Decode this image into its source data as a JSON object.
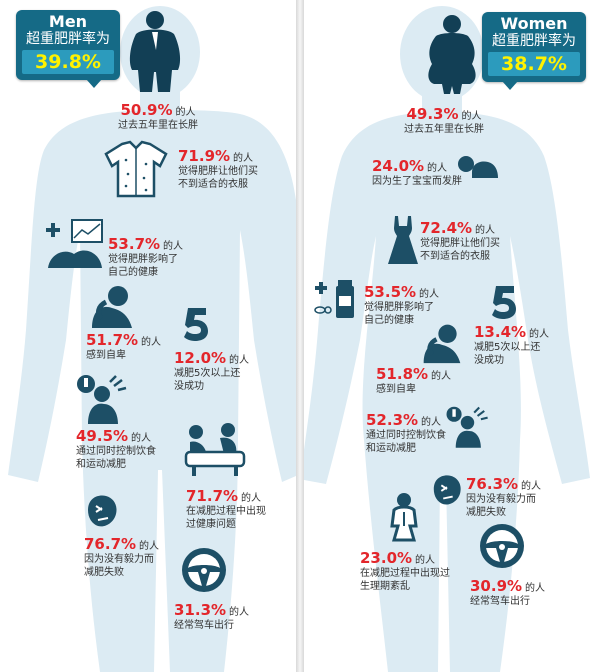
{
  "colors": {
    "accent_red": "#e3262b",
    "badge_bg": "#156a86",
    "badge_rate_bg": "#2c9bbd",
    "rate_text": "#fff200",
    "silhouette": "#dcebf3",
    "icon_dark": "#1d4f66"
  },
  "men": {
    "title": "Men",
    "subtitle": "超重肥胖率为",
    "rate": "39.8%",
    "stats": [
      {
        "pct": "50.9%",
        "suffix": "的人",
        "desc": [
          "过去五年里在长胖"
        ]
      },
      {
        "pct": "71.9%",
        "suffix": "的人",
        "desc": [
          "觉得肥胖让他们买",
          "不到适合的衣服"
        ],
        "icon": "shirt-icon"
      },
      {
        "pct": "53.7%",
        "suffix": "的人",
        "desc": [
          "觉得肥胖影响了",
          "自己的健康"
        ],
        "icon": "medical-chart-icon"
      },
      {
        "pct": "51.7%",
        "suffix": "的人",
        "desc": [
          "感到自卑"
        ],
        "icon": "sad-person-icon"
      },
      {
        "pct": "12.0%",
        "suffix": "的人",
        "desc": [
          "减肥5次以上还",
          "没成功"
        ],
        "icon": "number-five-icon"
      },
      {
        "pct": "49.5%",
        "suffix": "的人",
        "desc": [
          "通过同时控制饮食",
          "和运动减肥"
        ],
        "icon": "diet-exercise-icon"
      },
      {
        "pct": "71.7%",
        "suffix": "的人",
        "desc": [
          "在减肥过程中出现",
          "过健康问题"
        ],
        "icon": "doctor-patient-icon"
      },
      {
        "pct": "76.7%",
        "suffix": "的人",
        "desc": [
          "因为没有毅力而",
          "减肥失败"
        ],
        "icon": "frustrated-face-icon"
      },
      {
        "pct": "31.3%",
        "suffix": "的人",
        "desc": [
          "经常驾车出行"
        ],
        "icon": "steering-wheel-icon"
      }
    ]
  },
  "women": {
    "title": "Women",
    "subtitle": "超重肥胖率为",
    "rate": "38.7%",
    "stats": [
      {
        "pct": "49.3%",
        "suffix": "的人",
        "desc": [
          "过去五年里在长胖"
        ]
      },
      {
        "pct": "24.0%",
        "suffix": "的人",
        "desc": [
          "因为生了宝宝而发胖"
        ],
        "icon": "baby-icon"
      },
      {
        "pct": "72.4%",
        "suffix": "的人",
        "desc": [
          "觉得肥胖让他们买",
          "不到适合的衣服"
        ],
        "icon": "dress-icon"
      },
      {
        "pct": "53.5%",
        "suffix": "的人",
        "desc": [
          "觉得肥胖影响了",
          "自己的健康"
        ],
        "icon": "medicine-icon"
      },
      {
        "pct": "13.4%",
        "suffix": "的人",
        "desc": [
          "减肥5次以上还",
          "没成功"
        ],
        "icon": "number-five-icon"
      },
      {
        "pct": "51.8%",
        "suffix": "的人",
        "desc": [
          "感到自卑"
        ],
        "icon": "sad-person-icon"
      },
      {
        "pct": "52.3%",
        "suffix": "的人",
        "desc": [
          "通过同时控制饮食",
          "和运动减肥"
        ],
        "icon": "diet-exercise-icon"
      },
      {
        "pct": "76.3%",
        "suffix": "的人",
        "desc": [
          "因为没有毅力而",
          "减肥失败"
        ],
        "icon": "frustrated-face-icon"
      },
      {
        "pct": "23.0%",
        "suffix": "的人",
        "desc": [
          "在减肥过程中出现过",
          "生理期紊乱"
        ],
        "icon": "seated-woman-icon"
      },
      {
        "pct": "30.9%",
        "suffix": "的人",
        "desc": [
          "经常驾车出行"
        ],
        "icon": "steering-wheel-icon"
      }
    ]
  }
}
